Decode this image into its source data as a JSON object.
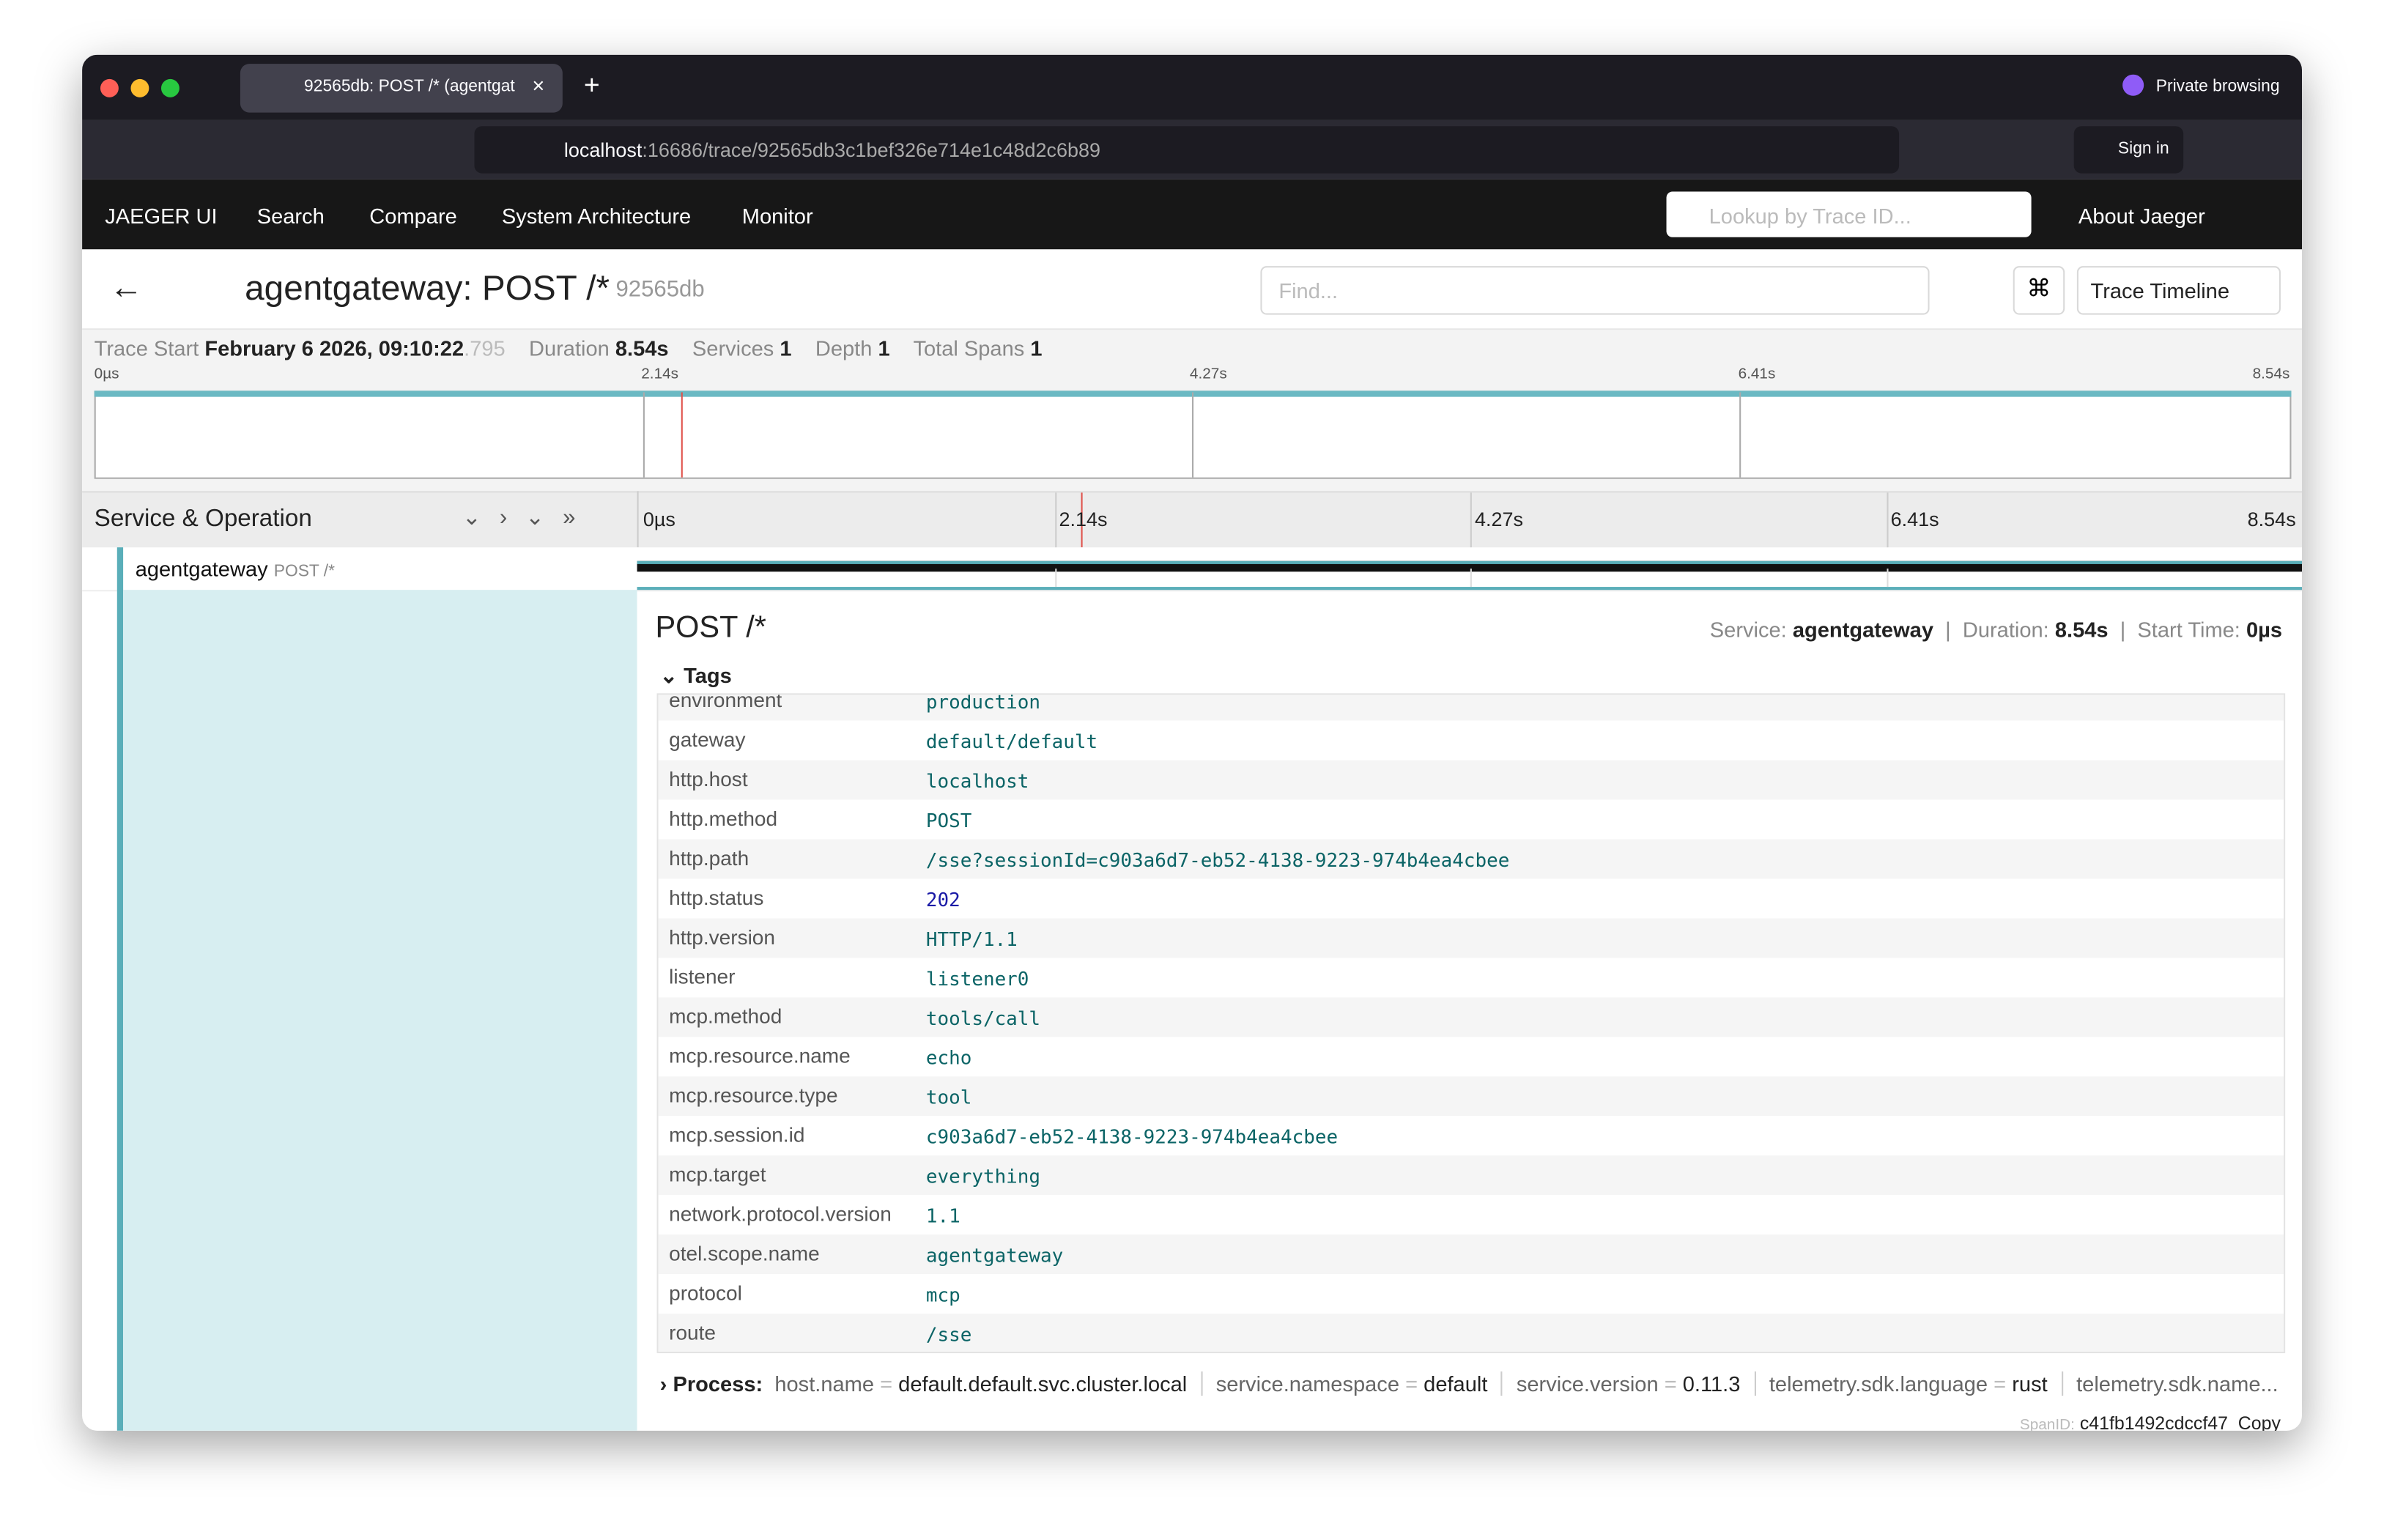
{
  "browser": {
    "tab_title": "92565db: POST /* (agentgat",
    "private": "Private browsing",
    "url_host": "localhost",
    "url_path": ":16686/trace/92565db3c1bef326e714e1c48d2c6b89",
    "sign_in": "Sign in"
  },
  "nav": {
    "brand": "JAEGER UI",
    "items": [
      "Search",
      "Compare",
      "System Architecture",
      "Monitor"
    ],
    "lookup_placeholder": "Lookup by Trace ID...",
    "about": "About Jaeger"
  },
  "trace": {
    "title": "agentgateway: POST /*",
    "trace_id": "92565db",
    "find_placeholder": "Find...",
    "view": "Trace Timeline"
  },
  "summary": {
    "start_label": "Trace Start",
    "start_value": "February 6 2026, 09:10:22",
    "start_ms": ".795",
    "duration_label": "Duration",
    "duration": "8.54s",
    "services_label": "Services",
    "services": "1",
    "depth_label": "Depth",
    "depth": "1",
    "spans_label": "Total Spans",
    "spans": "1"
  },
  "ticks": [
    "0µs",
    "2.14s",
    "4.27s",
    "6.41s",
    "8.54s"
  ],
  "timeline": {
    "header": "Service & Operation",
    "service": "agentgateway",
    "operation": "POST /*"
  },
  "detail": {
    "title": "POST /*",
    "service_label": "Service:",
    "service": "agentgateway",
    "duration_label": "Duration:",
    "duration": "8.54s",
    "start_label": "Start Time:",
    "start": "0µs",
    "tags_heading": "Tags",
    "tags": [
      [
        "environment",
        "production"
      ],
      [
        "gateway",
        "default/default"
      ],
      [
        "http.host",
        "localhost"
      ],
      [
        "http.method",
        "POST"
      ],
      [
        "http.path",
        "/sse?sessionId=c903a6d7-eb52-4138-9223-974b4ea4cbee"
      ],
      [
        "http.status",
        "202"
      ],
      [
        "http.version",
        "HTTP/1.1"
      ],
      [
        "listener",
        "listener0"
      ],
      [
        "mcp.method",
        "tools/call"
      ],
      [
        "mcp.resource.name",
        "echo"
      ],
      [
        "mcp.resource.type",
        "tool"
      ],
      [
        "mcp.session.id",
        "c903a6d7-eb52-4138-9223-974b4ea4cbee"
      ],
      [
        "mcp.target",
        "everything"
      ],
      [
        "network.protocol.version",
        "1.1"
      ],
      [
        "otel.scope.name",
        "agentgateway"
      ],
      [
        "protocol",
        "mcp"
      ],
      [
        "route",
        "/sse"
      ]
    ],
    "process_label": "Process:",
    "process": [
      [
        "host.name",
        "default.default.svc.cluster.local"
      ],
      [
        "service.namespace",
        "default"
      ],
      [
        "service.version",
        "0.11.3"
      ],
      [
        "telemetry.sdk.language",
        "rust"
      ],
      [
        "telemetry.sdk.name...",
        ""
      ]
    ],
    "span_id_label": "SpanID:",
    "span_id": "c41fb1492cdccf47",
    "copy": "Copy"
  }
}
